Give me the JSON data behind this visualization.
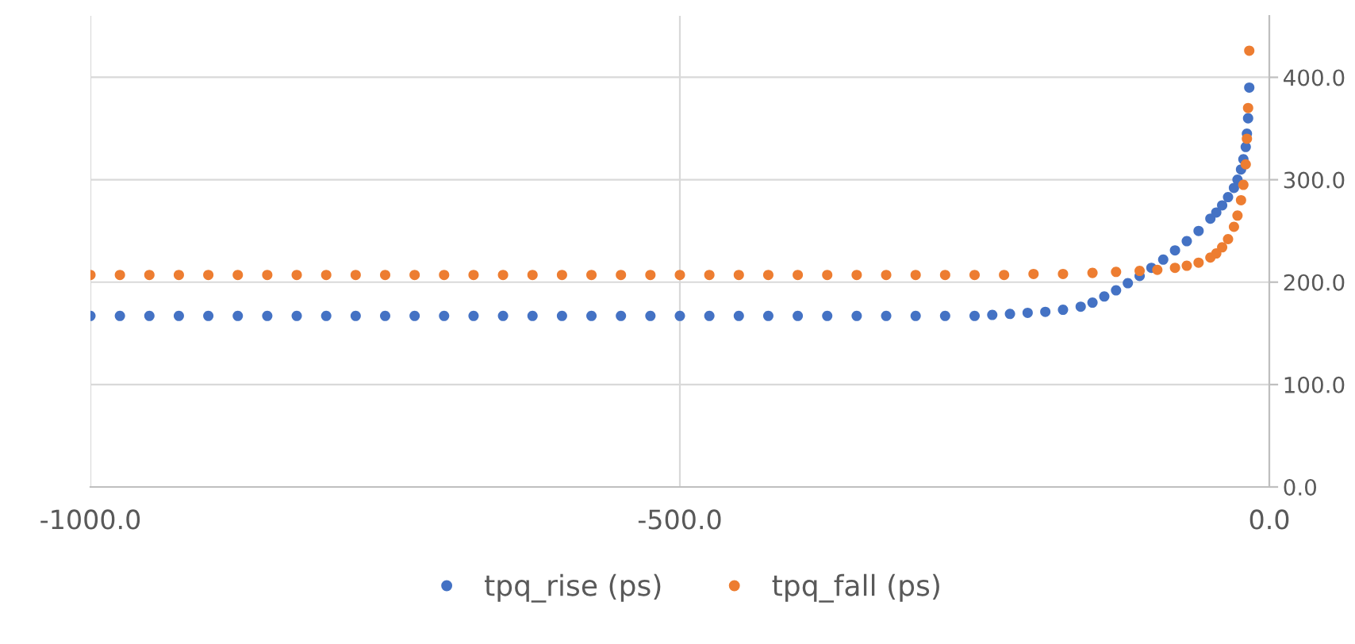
{
  "chart_data": {
    "type": "scatter",
    "xlim": [
      -1000,
      0
    ],
    "xticks": [
      {
        "value": -1000,
        "label": "-1000.0"
      },
      {
        "value": -500,
        "label": "-500.0"
      },
      {
        "value": 0,
        "label": "0.0"
      }
    ],
    "ylim": [
      0,
      460
    ],
    "yticks": [
      {
        "value": 0,
        "label": "0.0"
      },
      {
        "value": 100,
        "label": "100.0"
      },
      {
        "value": 200,
        "label": "200.0"
      },
      {
        "value": 300,
        "label": "300.0"
      },
      {
        "value": 400,
        "label": "400.0"
      }
    ],
    "grid": true,
    "legend": "bottom",
    "marker": "circle",
    "series": [
      {
        "name": "tpq_rise (ps)",
        "color": "#4472c4",
        "x": [
          -1000,
          -975,
          -950,
          -925,
          -900,
          -875,
          -850,
          -825,
          -800,
          -775,
          -750,
          -725,
          -700,
          -675,
          -650,
          -625,
          -600,
          -575,
          -550,
          -525,
          -500,
          -475,
          -450,
          -425,
          -400,
          -375,
          -350,
          -325,
          -300,
          -275,
          -250,
          -235,
          -220,
          -205,
          -190,
          -175,
          -160,
          -150,
          -140,
          -130,
          -120,
          -110,
          -100,
          -90,
          -80,
          -70,
          -60,
          -50,
          -45,
          -40,
          -35,
          -30,
          -27,
          -24,
          -22,
          -20,
          -19,
          -18,
          -17
        ],
        "values": [
          167,
          167,
          167,
          167,
          167,
          167,
          167,
          167,
          167,
          167,
          167,
          167,
          167,
          167,
          167,
          167,
          167,
          167,
          167,
          167,
          167,
          167,
          167,
          167,
          167,
          167,
          167,
          167,
          167,
          167,
          167,
          168,
          169,
          170,
          171,
          173,
          176,
          180,
          186,
          192,
          199,
          206,
          214,
          222,
          231,
          240,
          250,
          262,
          268,
          275,
          283,
          292,
          300,
          310,
          320,
          332,
          345,
          360,
          390
        ]
      },
      {
        "name": "tpq_fall (ps)",
        "color": "#ed7d31",
        "x": [
          -1000,
          -975,
          -950,
          -925,
          -900,
          -875,
          -850,
          -825,
          -800,
          -775,
          -750,
          -725,
          -700,
          -675,
          -650,
          -625,
          -600,
          -575,
          -550,
          -525,
          -500,
          -475,
          -450,
          -425,
          -400,
          -375,
          -350,
          -325,
          -300,
          -275,
          -250,
          -225,
          -200,
          -175,
          -150,
          -130,
          -110,
          -95,
          -80,
          -70,
          -60,
          -50,
          -45,
          -40,
          -35,
          -30,
          -27,
          -24,
          -22,
          -20,
          -19,
          -18,
          -17
        ],
        "values": [
          207,
          207,
          207,
          207,
          207,
          207,
          207,
          207,
          207,
          207,
          207,
          207,
          207,
          207,
          207,
          207,
          207,
          207,
          207,
          207,
          207,
          207,
          207,
          207,
          207,
          207,
          207,
          207,
          207,
          207,
          207,
          207,
          208,
          208,
          209,
          210,
          211,
          212,
          214,
          216,
          219,
          224,
          228,
          234,
          242,
          254,
          265,
          280,
          295,
          315,
          340,
          370,
          426
        ]
      }
    ]
  }
}
